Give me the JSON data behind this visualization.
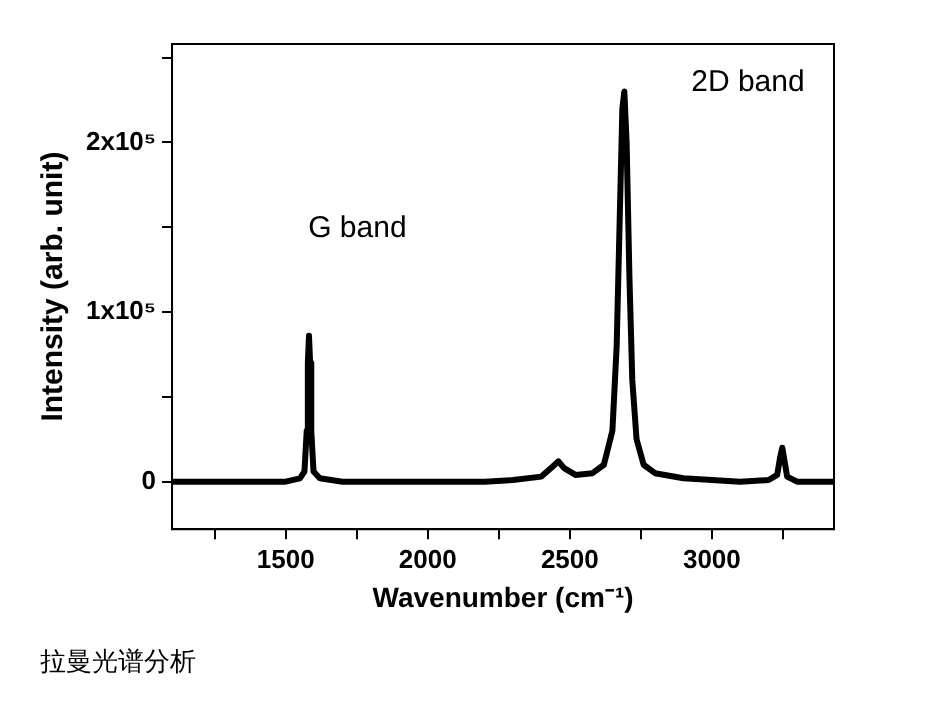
{
  "chart_data": {
    "type": "line",
    "xlabel": "Wavenumber (cm⁻¹)",
    "ylabel": "Intensity (arb. unit)",
    "annotations": [
      "G band",
      "2D band",
      "拉曼光谱分析"
    ],
    "x": [
      1100,
      1200,
      1300,
      1400,
      1500,
      1550,
      1566,
      1574,
      1578,
      1582,
      1586,
      1590,
      1598,
      1620,
      1700,
      1800,
      1900,
      2000,
      2100,
      2200,
      2300,
      2400,
      2440,
      2460,
      2480,
      2520,
      2580,
      2620,
      2650,
      2665,
      2675,
      2685,
      2692,
      2700,
      2710,
      2720,
      2735,
      2760,
      2800,
      2900,
      3000,
      3100,
      3200,
      3230,
      3240,
      3248,
      3256,
      3265,
      3300,
      3430
    ],
    "series": [
      {
        "color": "#000000",
        "values": [
          0,
          0,
          0,
          0,
          0,
          2000,
          6000,
          30000,
          70000,
          86000,
          70000,
          30000,
          6000,
          2000,
          0,
          0,
          0,
          0,
          0,
          0,
          1000,
          3000,
          9000,
          12000,
          8000,
          4000,
          5000,
          10000,
          30000,
          80000,
          150000,
          220000,
          230000,
          200000,
          120000,
          60000,
          25000,
          10000,
          5000,
          2000,
          1000,
          0,
          1000,
          4000,
          14000,
          20000,
          12000,
          3000,
          0,
          0
        ]
      }
    ],
    "xlim": [
      1100,
      3430
    ],
    "xticks": [
      {
        "value": 1250,
        "label": null
      },
      1500,
      {
        "value": 1750,
        "label": null
      },
      2000,
      {
        "value": 2250,
        "label": null
      },
      2500,
      {
        "value": 2750,
        "label": null
      },
      3000,
      {
        "value": 3250,
        "label": null
      }
    ],
    "ylim": [
      -28000,
      258000
    ],
    "yticks": [
      0,
      {
        "value": 50000,
        "label": null
      },
      {
        "value": 100000,
        "label": "1x10⁵"
      },
      {
        "value": 150000,
        "label": null
      },
      {
        "value": 200000,
        "label": "2x10⁵"
      },
      {
        "value": 250000,
        "label": null
      }
    ],
    "grid": false,
    "legend": false,
    "marker": "none",
    "line_style": "solid"
  }
}
